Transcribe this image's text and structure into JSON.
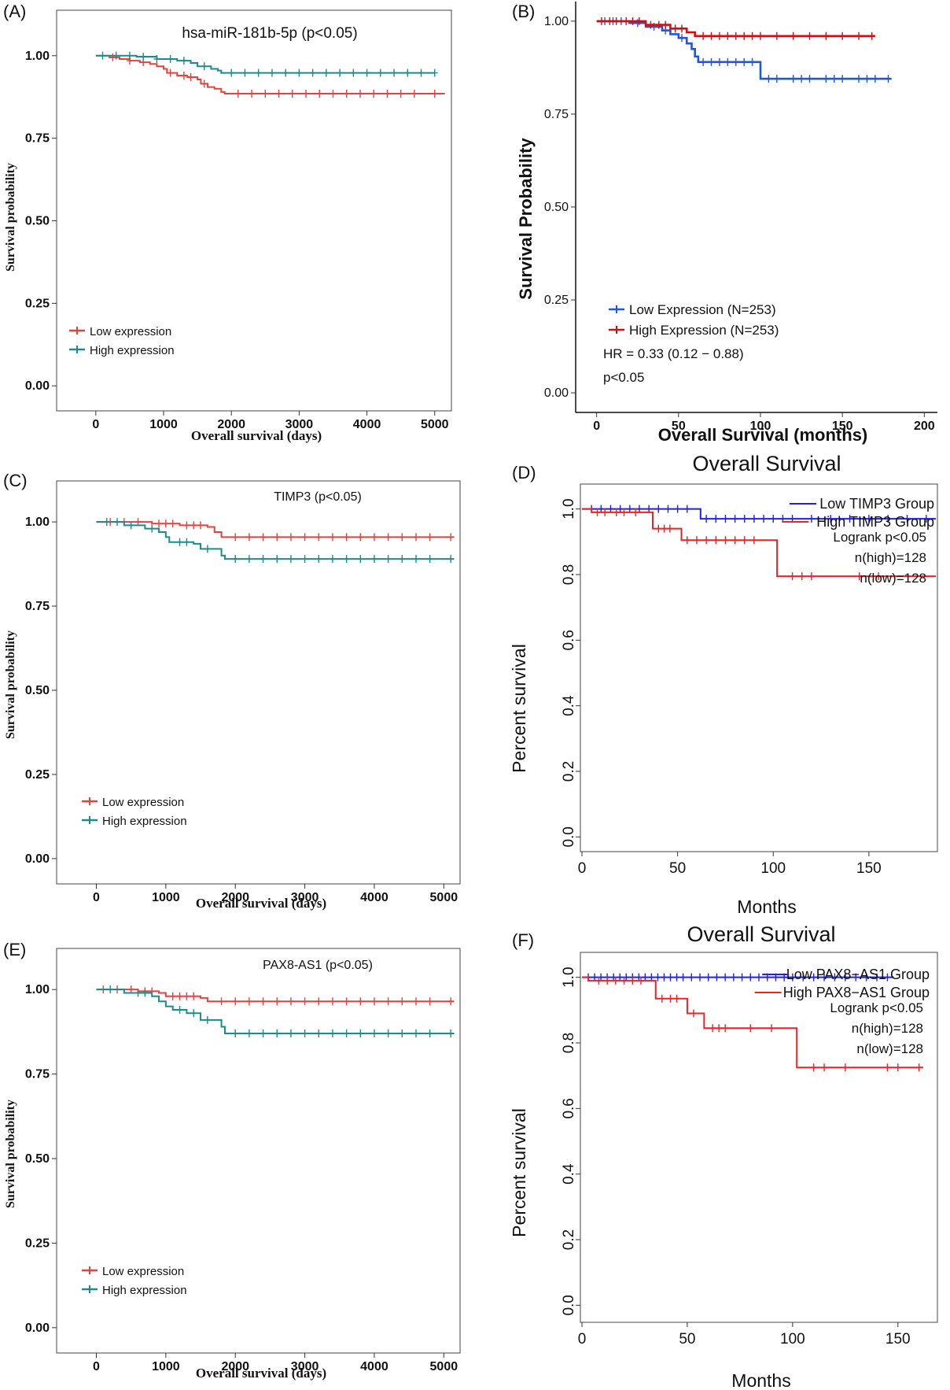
{
  "chart_data": [
    {
      "panel": "(A)",
      "type": "line",
      "title": "hsa-miR-181b-5p (p<0.05)",
      "xlabel": "Overall survival (days)",
      "ylabel": "Survival probability",
      "xlim": [
        -300,
        5200
      ],
      "ylim": [
        -0.04,
        1.04
      ],
      "xticks": [
        0,
        1000,
        2000,
        3000,
        4000,
        5000
      ],
      "yticks": [
        0.0,
        0.25,
        0.5,
        0.75,
        1.0
      ],
      "ytick_labels": [
        "0.00",
        "0.25",
        "0.50",
        "0.75",
        "1.00"
      ],
      "legend_position": "bottom-left",
      "series": [
        {
          "name": "Low expression",
          "color": "#e8413c",
          "x": [
            0,
            200,
            350,
            500,
            650,
            800,
            900,
            1000,
            1050,
            1200,
            1350,
            1500,
            1550,
            1650,
            1750,
            1850,
            1900,
            5150
          ],
          "y": [
            1.0,
            0.995,
            0.99,
            0.985,
            0.98,
            0.975,
            0.968,
            0.96,
            0.948,
            0.94,
            0.935,
            0.928,
            0.915,
            0.905,
            0.9,
            0.89,
            0.885,
            0.885
          ],
          "censors": [
            250,
            500,
            700,
            1100,
            1300,
            1400,
            1600,
            2100,
            2300,
            2500,
            2700,
            2900,
            3100,
            3300,
            3500,
            3700,
            3900,
            4100,
            4300,
            4500,
            4700,
            5000
          ]
        },
        {
          "name": "High expression",
          "color": "#1a8c8c",
          "x": [
            0,
            600,
            900,
            1200,
            1400,
            1500,
            1700,
            1800,
            1850,
            5000
          ],
          "y": [
            1.0,
            0.997,
            0.99,
            0.985,
            0.978,
            0.968,
            0.96,
            0.955,
            0.948,
            0.948
          ],
          "censors": [
            100,
            300,
            500,
            700,
            900,
            1100,
            1300,
            1600,
            2000,
            2200,
            2400,
            2600,
            2800,
            3000,
            3200,
            3400,
            3600,
            3800,
            4000,
            4200,
            4400,
            4600,
            4800,
            5000
          ]
        }
      ]
    },
    {
      "panel": "(B)",
      "type": "line",
      "title": "",
      "xlabel": "Overall Survival (months)",
      "ylabel": "Survival Probability",
      "xlim": [
        -8,
        208
      ],
      "ylim": [
        -0.04,
        1.04
      ],
      "xticks": [
        0,
        50,
        100,
        150,
        200
      ],
      "yticks": [
        0.0,
        0.25,
        0.5,
        0.75,
        1.0
      ],
      "ytick_labels": [
        "0.00",
        "0.25",
        "0.50",
        "0.75",
        "1.00"
      ],
      "legend_position": "bottom-left",
      "annotations": [
        "HR = 0.33 (0.12 − 0.88)",
        "p<0.05"
      ],
      "series": [
        {
          "name": "Low Expression (N=253)",
          "color": "#2255dd",
          "x": [
            0,
            20,
            30,
            40,
            45,
            50,
            55,
            58,
            60,
            62,
            98,
            100,
            180
          ],
          "y": [
            1.0,
            0.995,
            0.985,
            0.975,
            0.965,
            0.955,
            0.94,
            0.925,
            0.905,
            0.89,
            0.89,
            0.845,
            0.845
          ],
          "censors": [
            5,
            10,
            15,
            25,
            35,
            42,
            52,
            65,
            70,
            75,
            80,
            85,
            90,
            95,
            105,
            110,
            120,
            125,
            130,
            140,
            145,
            150,
            160,
            165,
            170,
            178
          ]
        },
        {
          "name": "High Expression (N=253)",
          "color": "#cc1111",
          "x": [
            0,
            30,
            45,
            55,
            60,
            170
          ],
          "y": [
            1.0,
            0.99,
            0.98,
            0.97,
            0.96,
            0.96
          ],
          "censors": [
            3,
            8,
            12,
            18,
            22,
            26,
            33,
            38,
            42,
            48,
            52,
            65,
            70,
            75,
            80,
            85,
            90,
            95,
            100,
            110,
            120,
            130,
            140,
            150,
            160,
            168
          ]
        }
      ]
    },
    {
      "panel": "(C)",
      "type": "line",
      "title": "TIMP3 (p<0.05)",
      "xlabel": "Overall survival (days)",
      "ylabel": "Survival probability",
      "xlim": [
        -300,
        5200
      ],
      "ylim": [
        -0.04,
        1.04
      ],
      "xticks": [
        0,
        1000,
        2000,
        3000,
        4000,
        5000
      ],
      "yticks": [
        0.0,
        0.25,
        0.5,
        0.75,
        1.0
      ],
      "ytick_labels": [
        "0.00",
        "0.25",
        "0.50",
        "0.75",
        "1.00"
      ],
      "legend_position": "bottom-left",
      "series": [
        {
          "name": "Low expression",
          "color": "#e8413c",
          "x": [
            0,
            800,
            1200,
            1600,
            1700,
            1800,
            5150
          ],
          "y": [
            1.0,
            0.995,
            0.99,
            0.985,
            0.97,
            0.955,
            0.955
          ],
          "censors": [
            200,
            400,
            600,
            900,
            1000,
            1100,
            1300,
            1400,
            1500,
            2000,
            2200,
            2400,
            2600,
            2800,
            3000,
            3200,
            3400,
            3600,
            3800,
            4000,
            4200,
            4400,
            4600,
            4800,
            5100
          ]
        },
        {
          "name": "High expression",
          "color": "#1a8c8c",
          "x": [
            0,
            400,
            700,
            900,
            1000,
            1050,
            1400,
            1500,
            1800,
            1850,
            5150
          ],
          "y": [
            1.0,
            0.99,
            0.98,
            0.97,
            0.955,
            0.94,
            0.935,
            0.92,
            0.9,
            0.89,
            0.89
          ],
          "censors": [
            150,
            300,
            500,
            800,
            1200,
            1300,
            1600,
            2000,
            2200,
            2400,
            2600,
            2800,
            3000,
            3200,
            3400,
            3600,
            3800,
            4000,
            4200,
            4400,
            4600,
            4800,
            5100
          ]
        }
      ]
    },
    {
      "panel": "(D)",
      "type": "line",
      "title": "Overall Survival",
      "xlabel": "Months",
      "ylabel": "Percent survival",
      "xlim": [
        0,
        185
      ],
      "ylim": [
        -0.04,
        1.04
      ],
      "xticks": [
        0,
        50,
        100,
        150
      ],
      "yticks": [
        0.0,
        0.2,
        0.4,
        0.6,
        0.8,
        1.0
      ],
      "ytick_labels": [
        "0.0",
        "0.2",
        "0.4",
        "0.6",
        "0.8",
        "1.0"
      ],
      "legend_position": "top-right",
      "annotations": [
        "Logrank p<0.05",
        "n(high)=128",
        "n(low)=128"
      ],
      "series": [
        {
          "name": "Low TIMP3 Group",
          "color": "#2222dd",
          "x": [
            0,
            60,
            62,
            185
          ],
          "y": [
            1.0,
            1.0,
            0.97,
            0.97
          ],
          "censors": [
            5,
            10,
            15,
            20,
            25,
            30,
            35,
            40,
            45,
            50,
            55,
            65,
            70,
            75,
            80,
            85,
            90,
            95,
            100,
            105,
            110,
            120,
            130,
            140,
            150,
            160,
            170,
            180
          ]
        },
        {
          "name": "High TIMP3 Group",
          "color": "#ee2222",
          "x": [
            0,
            5,
            35,
            37,
            50,
            52,
            100,
            102,
            185
          ],
          "y": [
            1.0,
            0.99,
            0.99,
            0.94,
            0.94,
            0.905,
            0.905,
            0.795,
            0.795
          ],
          "censors": [
            8,
            12,
            18,
            22,
            28,
            40,
            43,
            46,
            55,
            60,
            65,
            70,
            75,
            80,
            85,
            90,
            110,
            115,
            120,
            145,
            155
          ]
        }
      ]
    },
    {
      "panel": "(E)",
      "type": "line",
      "title": "PAX8-AS1 (p<0.05)",
      "xlabel": "Overall survival (days)",
      "ylabel": "Survival probability",
      "xlim": [
        -300,
        5200
      ],
      "ylim": [
        -0.04,
        1.04
      ],
      "xticks": [
        0,
        1000,
        2000,
        3000,
        4000,
        5000
      ],
      "yticks": [
        0.0,
        0.25,
        0.5,
        0.75,
        1.0
      ],
      "ytick_labels": [
        "0.00",
        "0.25",
        "0.50",
        "0.75",
        "1.00"
      ],
      "legend_position": "bottom-left",
      "series": [
        {
          "name": "Low expression",
          "color": "#e8413c",
          "x": [
            0,
            600,
            900,
            1000,
            1500,
            1600,
            5150
          ],
          "y": [
            1.0,
            0.995,
            0.99,
            0.98,
            0.975,
            0.965,
            0.965
          ],
          "censors": [
            100,
            300,
            500,
            700,
            800,
            1100,
            1200,
            1300,
            1400,
            1800,
            2000,
            2200,
            2400,
            2600,
            2800,
            3000,
            3200,
            3400,
            3600,
            3800,
            4000,
            4200,
            4400,
            4600,
            4800,
            5100
          ]
        },
        {
          "name": "High expression",
          "color": "#1a8c8c",
          "x": [
            0,
            400,
            800,
            900,
            1000,
            1100,
            1300,
            1500,
            1800,
            1850,
            5150
          ],
          "y": [
            1.0,
            0.99,
            0.98,
            0.965,
            0.95,
            0.94,
            0.93,
            0.91,
            0.89,
            0.87,
            0.87
          ],
          "censors": [
            200,
            600,
            700,
            1200,
            1400,
            1600,
            2000,
            2200,
            2400,
            2600,
            2800,
            3000,
            3200,
            3400,
            3600,
            3800,
            4000,
            4200,
            4400,
            4600,
            4800,
            5100
          ]
        }
      ]
    },
    {
      "panel": "(F)",
      "type": "line",
      "title": "Overall Survival",
      "xlabel": "Months",
      "ylabel": "Percent survival",
      "xlim": [
        0,
        168
      ],
      "ylim": [
        -0.04,
        1.04
      ],
      "xticks": [
        0,
        50,
        100,
        150
      ],
      "yticks": [
        0.0,
        0.2,
        0.4,
        0.6,
        0.8,
        1.0
      ],
      "ytick_labels": [
        "0.0",
        "0.2",
        "0.4",
        "0.6",
        "0.8",
        "1.0"
      ],
      "legend_position": "top-right",
      "annotations": [
        "Logrank p<0.05",
        "n(high)=128",
        "n(low)=128"
      ],
      "series": [
        {
          "name": "Low PAX8−AS1 Group",
          "color": "#2222dd",
          "x": [
            0,
            148
          ],
          "y": [
            1.0,
            1.0
          ],
          "censors": [
            3,
            6,
            9,
            12,
            15,
            18,
            21,
            24,
            27,
            30,
            33,
            36,
            39,
            42,
            45,
            48,
            52,
            56,
            60,
            64,
            68,
            72,
            76,
            80,
            84,
            88,
            92,
            96,
            100,
            105,
            110,
            115,
            120,
            125,
            130,
            135,
            140,
            145
          ]
        },
        {
          "name": "High PAX8−AS1 Group",
          "color": "#ee2222",
          "x": [
            0,
            3,
            33,
            35,
            48,
            50,
            56,
            58,
            100,
            102,
            162
          ],
          "y": [
            1.0,
            0.99,
            0.99,
            0.935,
            0.935,
            0.89,
            0.89,
            0.845,
            0.845,
            0.725,
            0.725
          ],
          "censors": [
            8,
            12,
            16,
            20,
            24,
            28,
            38,
            42,
            45,
            53,
            62,
            65,
            68,
            80,
            90,
            110,
            115,
            125,
            145,
            150,
            160
          ]
        }
      ]
    }
  ]
}
